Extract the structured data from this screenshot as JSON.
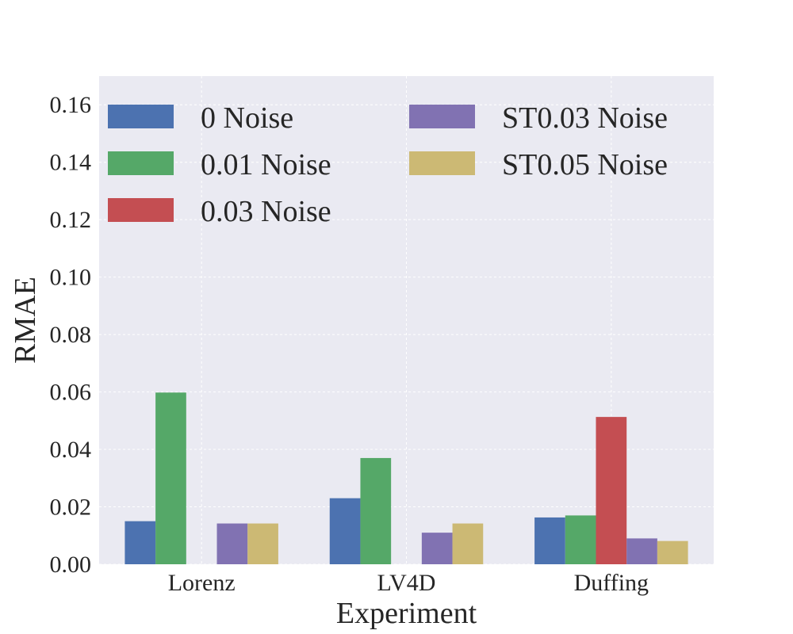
{
  "chart_data": {
    "type": "bar",
    "title": "",
    "xlabel": "Experiment",
    "ylabel": "RMAE",
    "categories": [
      "Lorenz",
      "LV4D",
      "Duffing"
    ],
    "ylim": [
      0,
      0.17
    ],
    "yticks": [
      "0.00",
      "0.02",
      "0.04",
      "0.06",
      "0.08",
      "0.10",
      "0.12",
      "0.14",
      "0.16"
    ],
    "grid": true,
    "legend_position": "top",
    "series": [
      {
        "name": "0 Noise",
        "color": "#4c72b0",
        "values": [
          0.015,
          0.023,
          0.0163
        ]
      },
      {
        "name": "0.01 Noise",
        "color": "#55a868",
        "values": [
          0.0598,
          0.037,
          0.017
        ]
      },
      {
        "name": "0.03 Noise",
        "color": "#c44e52",
        "values": [
          null,
          null,
          0.0513
        ]
      },
      {
        "name": "ST0.03 Noise",
        "color": "#8172b2",
        "values": [
          0.0142,
          0.011,
          0.009
        ]
      },
      {
        "name": "ST0.05 Noise",
        "color": "#ccb974",
        "values": [
          0.0142,
          0.0142,
          0.0081
        ]
      }
    ]
  }
}
